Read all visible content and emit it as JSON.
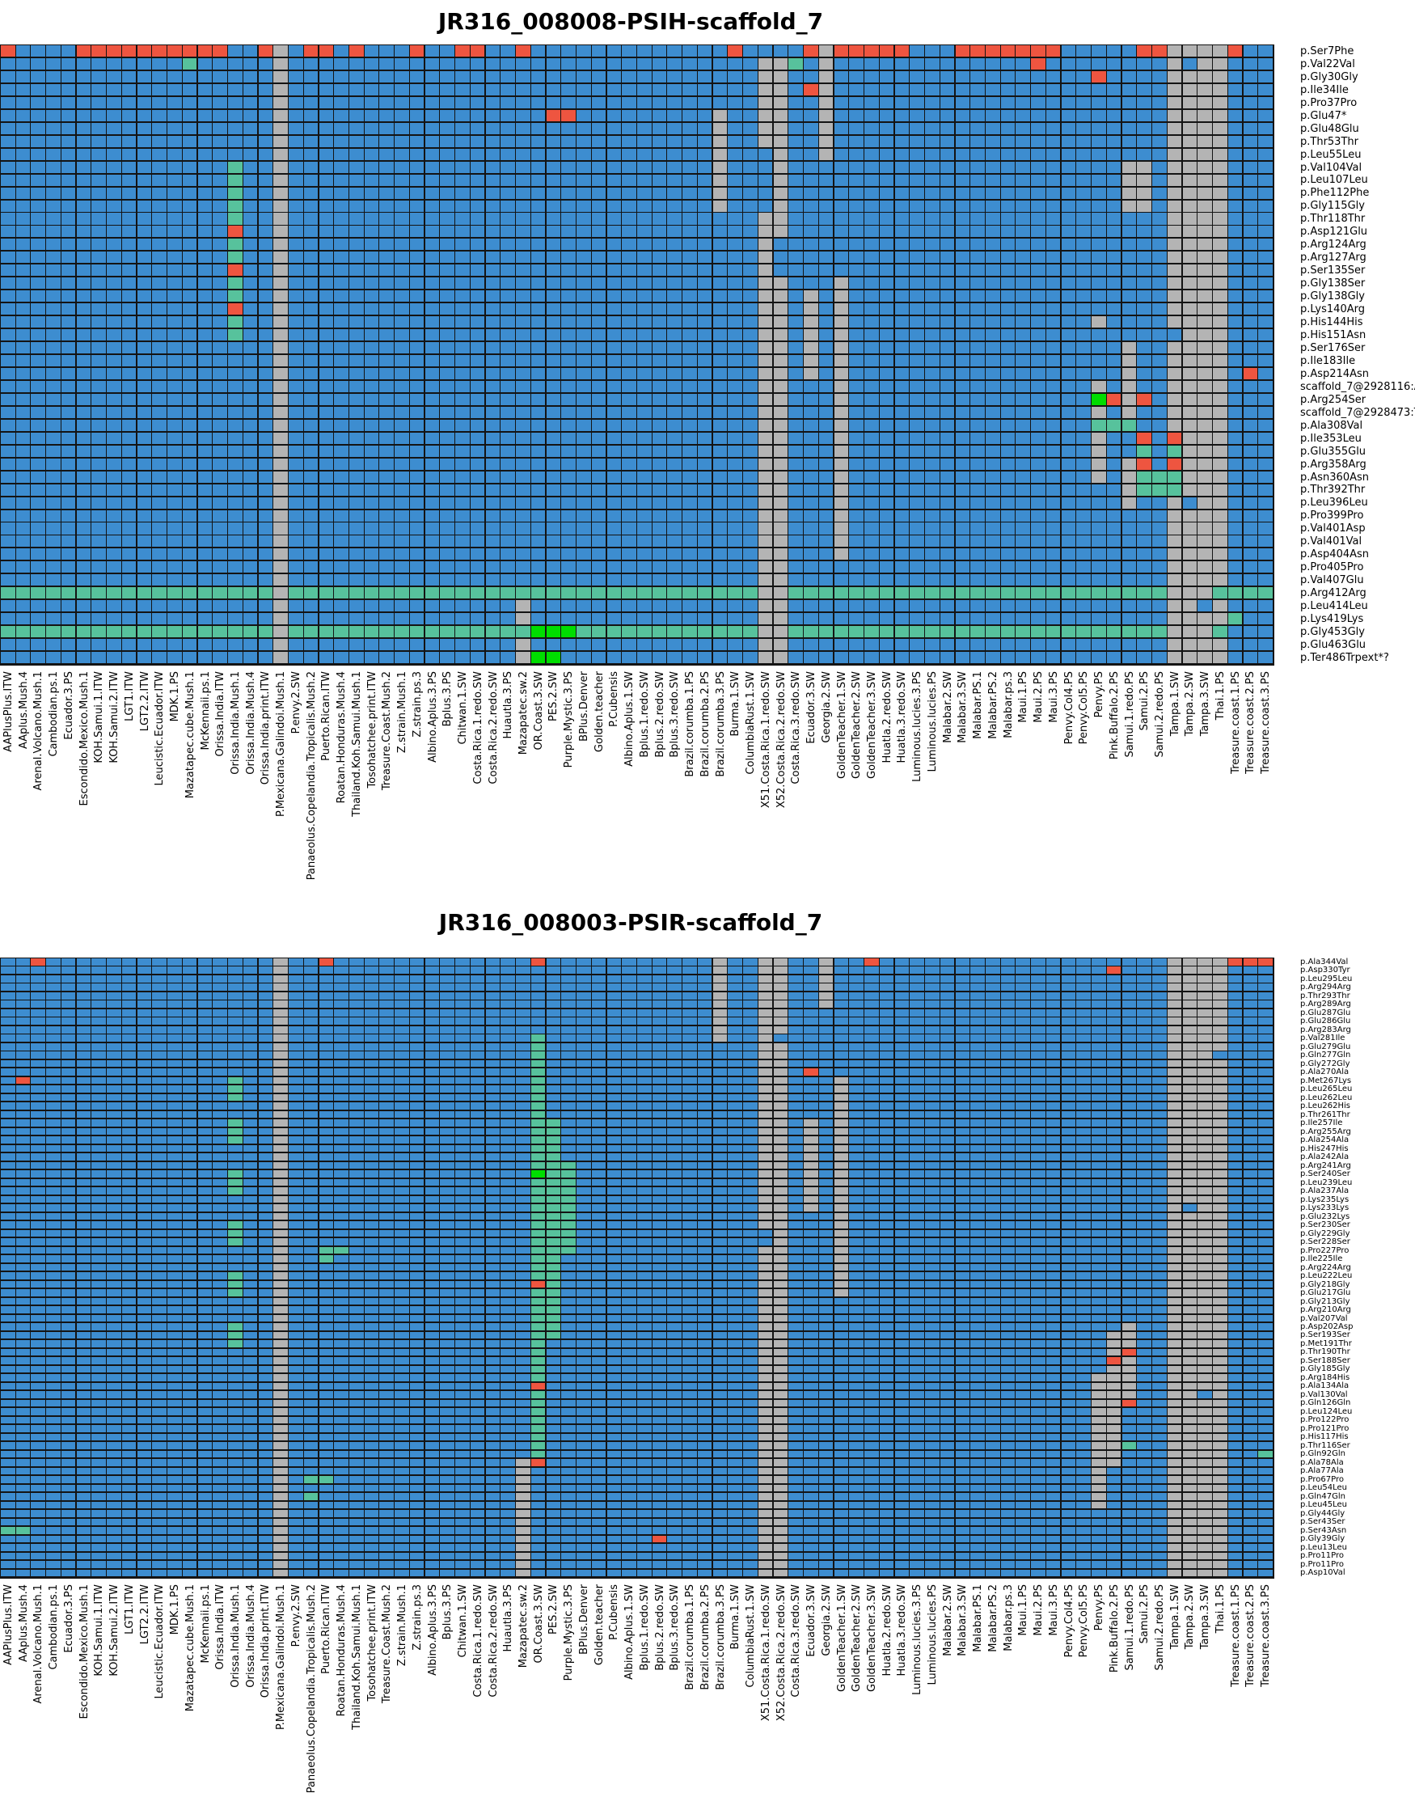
{
  "palette": {
    "blue": "#3d8dd0",
    "red": "#ee5540",
    "teal": "#57c29c",
    "green": "#00dd00",
    "gray": "#b4b4b4",
    "grid_line": "#141414",
    "background": "#ffffff"
  },
  "chart_data": [
    {
      "type": "heatmap",
      "title": "JR316_008008-PSIH-scaffold_7",
      "legend_note": "cell colors: blue=reference, red=alt variant, teal=heterozygous, green=other alt, gray=no data",
      "row_labels": [
        "p.Ser7Phe",
        "p.Val22Val",
        "p.Gly30Gly",
        "p.Ile34Ile",
        "p.Pro37Pro",
        "p.Glu47*",
        "p.Glu48Glu",
        "p.Thr53Thr",
        "p.Leu55Leu",
        "p.Val104Val",
        "p.Leu107Leu",
        "p.Phe112Phe",
        "p.Gly115Gly",
        "p.Thr118Thr",
        "p.Asp121Glu",
        "p.Arg124Arg",
        "p.Arg127Arg",
        "p.Ser135Ser",
        "p.Gly138Ser",
        "p.Gly138Gly",
        "p.Lys140Arg",
        "p.His144His",
        "p.His151Asn",
        "p.Ser176Ser",
        "p.Ile183Ile",
        "p.Asp214Asn",
        "scaffold_7@2928116:A|G",
        "p.Arg254Ser",
        "scaffold_7@2928473:T|A",
        "p.Ala308Val",
        "p.Ile353Leu",
        "p.Glu355Glu",
        "p.Arg358Arg",
        "p.Asn360Asn",
        "p.Thr392Thr",
        "p.Leu396Leu",
        "p.Pro399Pro",
        "p.Val401Asp",
        "p.Val401Val",
        "p.Asp404Asn",
        "p.Pro405Pro",
        "p.Val407Glu",
        "p.Arg412Arg",
        "p.Leu414Leu",
        "p.Lys419Lys",
        "p.Gly453Gly",
        "p.Glu463Glu",
        "p.Ter486Trpext*?"
      ],
      "col_labels": [
        "AAPlusPlus.ITW",
        "AAplus.Mush.4",
        "Arenal.Volcano.Mush.1",
        "Cambodian.ps.1",
        "Ecuador.3.PS",
        "Escondido.Mexico.Mush.1",
        "KOH.Samui.1.ITW",
        "KOH.Samui.2.ITW",
        "LGT1.ITW",
        "LGT2.2.ITW",
        "Leucistic.Ecuador.ITW",
        "MDK.1.PS",
        "Mazatapec.cube.Mush.1",
        "McKennaii.ps.1",
        "Orissa.India.ITW",
        "Orissa.India.Mush.1",
        "Orissa.India.Mush.4",
        "Orissa.India.print.ITW",
        "P.Mexicana.Galindoi.Mush.1",
        "P.envy.2.SW",
        "Panaeolus.Copelandia.Tropicalis.Mush.2",
        "Puerto.Rican.ITW",
        "Roatan.Honduras.Mush.4",
        "Thailand.Koh.Samui.Mush.1",
        "Tosohatchee.print.ITW",
        "Treasure.Coast.Mush.2",
        "Z.strain.Mush.1",
        "Z.strain.ps.3",
        "Albino.Aplus.3.PS",
        "Bplus.3.PS",
        "Chitwan.1.SW",
        "Costa.Rica.1.redo.SW",
        "Costa.Rica.2.redo.SW",
        "Huautla.3.PS",
        "Mazapatec.sw.2",
        "OR.Coast.3.SW",
        "PES.2.SW",
        "Purple.Mystic.3.PS",
        "BPlus.Denver",
        "Golden.teacher",
        "P.Cubensis",
        "Albino.Aplus.1.SW",
        "Bplus.1.redo.SW",
        "Bplus.2.redo.SW",
        "Bplus.3.redo.SW",
        "Brazil.corumba.1.PS",
        "Brazil.corumba.2.PS",
        "Brazil.corumba.3.PS",
        "Burma.1.SW",
        "ColumbiaRust.1.SW",
        "X51.Costa.Rica.1.redo.SW",
        "X52.Costa.Rica.2.redo.SW",
        "Costa.Rica.3.redo.SW",
        "Ecuador.3.SW",
        "Georgia.2.SW",
        "GoldenTeacher.1.SW",
        "GoldenTeacher.2.SW",
        "GoldenTeacher.3.SW",
        "Huatla.2.redo.SW",
        "Huatla.3.redo.SW",
        "Luminous.lucies.3.PS",
        "Luminous.lucies.PS",
        "Malabar.2.SW",
        "Malabar.3.SW",
        "Malabar.PS.1",
        "Malabar.PS.2",
        "Malabar.ps.3",
        "Maui.1.PS",
        "Maui.2.PS",
        "Maui.3.PS",
        "Penvy.Col4.PS",
        "Penvy.Col5.PS",
        "Penvy.PS",
        "Pink.Buffalo.2.PS",
        "Samui.1.redo.PS",
        "Samui.2.PS",
        "Samui.2.redo.PS",
        "Tampa.1.SW",
        "Tampa.2.SW",
        "Tampa.3.SW",
        "Thai.1.PS",
        "Treasure.coast.1.PS",
        "Treasure.coast.2.PS",
        "Treasure.coast.3.PS"
      ],
      "default_color": "blue",
      "gray_col_runs": [
        [
          19,
          1,
          48
        ],
        [
          51,
          2,
          8
        ],
        [
          51,
          14,
          48
        ],
        [
          52,
          2,
          15
        ],
        [
          52,
          19,
          48
        ],
        [
          48,
          6,
          13
        ],
        [
          55,
          1,
          9
        ],
        [
          56,
          19,
          40
        ],
        [
          54,
          20,
          26
        ],
        [
          73,
          22,
          22
        ],
        [
          73,
          27,
          29
        ],
        [
          73,
          31,
          34
        ],
        [
          75,
          10,
          13
        ],
        [
          76,
          10,
          13
        ],
        [
          75,
          24,
          29
        ],
        [
          75,
          33,
          36
        ],
        [
          35,
          44,
          48
        ],
        [
          78,
          1,
          48
        ],
        [
          79,
          1,
          48
        ],
        [
          80,
          1,
          48
        ],
        [
          81,
          1,
          48
        ]
      ],
      "teal_col_runs": [
        [
          16,
          10,
          14
        ],
        [
          16,
          16,
          17
        ],
        [
          16,
          19,
          20
        ],
        [
          16,
          22,
          23
        ]
      ],
      "teal_row_runs": [
        [
          43,
          1,
          18
        ],
        [
          43,
          20,
          50
        ],
        [
          43,
          53,
          77
        ],
        [
          43,
          81,
          84
        ],
        [
          46,
          1,
          18
        ],
        [
          46,
          20,
          35
        ],
        [
          46,
          39,
          50
        ],
        [
          46,
          53,
          77
        ],
        [
          46,
          81,
          81
        ]
      ],
      "blue_cells": [
        [
          23,
          78
        ],
        [
          36,
          79
        ],
        [
          44,
          80
        ],
        [
          2,
          79
        ]
      ],
      "teal_cells": [
        [
          2,
          13
        ],
        [
          2,
          53
        ],
        [
          30,
          73
        ],
        [
          30,
          74
        ],
        [
          30,
          75
        ],
        [
          32,
          76
        ],
        [
          32,
          78
        ],
        [
          34,
          76
        ],
        [
          34,
          77
        ],
        [
          34,
          78
        ],
        [
          35,
          76
        ],
        [
          35,
          77
        ],
        [
          35,
          78
        ],
        [
          45,
          82
        ]
      ],
      "red_cells": [
        [
          1,
          1
        ],
        [
          1,
          6
        ],
        [
          1,
          7
        ],
        [
          1,
          8
        ],
        [
          1,
          9
        ],
        [
          1,
          10
        ],
        [
          1,
          11
        ],
        [
          1,
          12
        ],
        [
          1,
          13
        ],
        [
          1,
          14
        ],
        [
          1,
          15
        ],
        [
          1,
          18
        ],
        [
          1,
          21
        ],
        [
          1,
          22
        ],
        [
          1,
          24
        ],
        [
          1,
          28
        ],
        [
          1,
          31
        ],
        [
          1,
          32
        ],
        [
          1,
          35
        ],
        [
          1,
          49
        ],
        [
          1,
          54
        ],
        [
          1,
          56
        ],
        [
          1,
          57
        ],
        [
          1,
          58
        ],
        [
          1,
          59
        ],
        [
          1,
          60
        ],
        [
          1,
          64
        ],
        [
          1,
          65
        ],
        [
          1,
          66
        ],
        [
          1,
          67
        ],
        [
          1,
          68
        ],
        [
          1,
          69
        ],
        [
          1,
          70
        ],
        [
          1,
          76
        ],
        [
          1,
          77
        ],
        [
          1,
          82
        ],
        [
          2,
          69
        ],
        [
          3,
          73
        ],
        [
          4,
          54
        ],
        [
          6,
          37
        ],
        [
          6,
          38
        ],
        [
          15,
          16
        ],
        [
          18,
          16
        ],
        [
          21,
          16
        ],
        [
          26,
          83
        ],
        [
          28,
          74
        ],
        [
          28,
          76
        ],
        [
          31,
          76
        ],
        [
          31,
          78
        ],
        [
          33,
          76
        ],
        [
          33,
          78
        ]
      ],
      "green_cells": [
        [
          28,
          73
        ],
        [
          46,
          36
        ],
        [
          46,
          37
        ],
        [
          46,
          38
        ],
        [
          48,
          36
        ],
        [
          48,
          37
        ]
      ]
    },
    {
      "type": "heatmap",
      "title": "JR316_008003-PSIR-scaffold_7",
      "legend_note": "cell colors: blue=reference, red=alt variant, teal=heterozygous, green=other alt, gray=no data",
      "row_labels": [
        "p.Ala344Val",
        "p.Asp330Tyr",
        "p.Leu295Leu",
        "p.Arg294Arg",
        "p.Thr293Thr",
        "p.Arg289Arg",
        "p.Glu287Glu",
        "p.Glu286Glu",
        "p.Arg283Arg",
        "p.Val281Ile",
        "p.Glu279Glu",
        "p.Gln277Gln",
        "p.Gly272Gly",
        "p.Ala270Ala",
        "p.Met267Lys",
        "p.Leu265Leu",
        "p.Leu262Leu",
        "p.Leu262His",
        "p.Thr261Thr",
        "p.Ile257Ile",
        "p.Arg255Arg",
        "p.Ala254Ala",
        "p.His247His",
        "p.Ala242Ala",
        "p.Arg241Arg",
        "p.Ser240Ser",
        "p.Leu239Leu",
        "p.Ala237Ala",
        "p.Lys235Lys",
        "p.Lys233Lys",
        "p.Glu232Lys",
        "p.Ser230Ser",
        "p.Gly229Gly",
        "p.Ser228Ser",
        "p.Pro227Pro",
        "p.Ile225Ile",
        "p.Arg224Arg",
        "p.Leu222Leu",
        "p.Gly218Gly",
        "p.Glu217Glu",
        "p.Gly213Gly",
        "p.Arg210Arg",
        "p.Val207Val",
        "p.Asp202Asp",
        "p.Ser193Ser",
        "p.Met191Thr",
        "p.Thr190Thr",
        "p.Ser188Ser",
        "p.Gly185Gly",
        "p.Arg184His",
        "p.Ala134Ala",
        "p.Val130Val",
        "p.Gln126Gln",
        "p.Leu124Leu",
        "p.Pro122Pro",
        "p.Pro121Pro",
        "p.His117His",
        "p.Thr116Ser",
        "p.Gln92Gln",
        "p.Ala78Ala",
        "p.Ala77Ala",
        "p.Pro67Pro",
        "p.Leu54Leu",
        "p.Gln47Gln",
        "p.Leu45Leu",
        "p.Gly44Gly",
        "p.Ser43Ser",
        "p.Ser43Asn",
        "p.Gly39Gly",
        "p.Leu13Leu",
        "p.Pro11Pro",
        "p.Pro11Pro",
        "p.Asp10Val"
      ],
      "col_labels": [
        "AAPlusPlus.ITW",
        "AAplus.Mush.4",
        "Arenal.Volcano.Mush.1",
        "Cambodian.ps.1",
        "Ecuador.3.PS",
        "Escondido.Mexico.Mush.1",
        "KOH.Samui.1.ITW",
        "KOH.Samui.2.ITW",
        "LGT1.ITW",
        "LGT2.2.ITW",
        "Leucistic.Ecuador.ITW",
        "MDK.1.PS",
        "Mazatapec.cube.Mush.1",
        "McKennaii.ps.1",
        "Orissa.India.ITW",
        "Orissa.India.Mush.1",
        "Orissa.India.Mush.4",
        "Orissa.India.print.ITW",
        "P.Mexicana.Galindoi.Mush.1",
        "P.envy.2.SW",
        "Panaeolus.Copelandia.Tropicalis.Mush.2",
        "Puerto.Rican.ITW",
        "Roatan.Honduras.Mush.4",
        "Thailand.Koh.Samui.Mush.1",
        "Tosohatchee.print.ITW",
        "Treasure.Coast.Mush.2",
        "Z.strain.Mush.1",
        "Z.strain.ps.3",
        "Albino.Aplus.3.PS",
        "Bplus.3.PS",
        "Chitwan.1.SW",
        "Costa.Rica.1.redo.SW",
        "Costa.Rica.2.redo.SW",
        "Huautla.3.PS",
        "Mazapatec.sw.2",
        "OR.Coast.3.SW",
        "PES.2.SW",
        "Purple.Mystic.3.PS",
        "BPlus.Denver",
        "Golden.teacher",
        "P.Cubensis",
        "Albino.Aplus.1.SW",
        "Bplus.1.redo.SW",
        "Bplus.2.redo.SW",
        "Bplus.3.redo.SW",
        "Brazil.corumba.1.PS",
        "Brazil.corumba.2.PS",
        "Brazil.corumba.3.PS",
        "Burma.1.SW",
        "ColumbiaRust.1.SW",
        "X51.Costa.Rica.1.redo.SW",
        "X52.Costa.Rica.2.redo.SW",
        "Costa.Rica.3.redo.SW",
        "Ecuador.3.SW",
        "Georgia.2.SW",
        "GoldenTeacher.1.SW",
        "GoldenTeacher.2.SW",
        "GoldenTeacher.3.SW",
        "Huatla.2.redo.SW",
        "Huatla.3.redo.SW",
        "Luminous.lucies.3.PS",
        "Luminous.lucies.PS",
        "Malabar.2.SW",
        "Malabar.3.SW",
        "Malabar.PS.1",
        "Malabar.PS.2",
        "Malabar.ps.3",
        "Maui.1.PS",
        "Maui.2.PS",
        "Maui.3.PS",
        "Penvy.Col4.PS",
        "Penvy.Col5.PS",
        "Penvy.PS",
        "Pink.Buffalo.2.PS",
        "Samui.1.redo.PS",
        "Samui.2.PS",
        "Samui.2.redo.PS",
        "Tampa.1.SW",
        "Tampa.2.SW",
        "Tampa.3.SW",
        "Thai.1.PS",
        "Treasure.coast.1.PS",
        "Treasure.coast.2.PS",
        "Treasure.coast.3.PS"
      ],
      "default_color": "blue",
      "gray_col_runs": [
        [
          19,
          1,
          73
        ],
        [
          51,
          1,
          73
        ],
        [
          52,
          1,
          73
        ],
        [
          78,
          1,
          73
        ],
        [
          79,
          1,
          73
        ],
        [
          80,
          1,
          73
        ],
        [
          81,
          1,
          73
        ],
        [
          48,
          1,
          10
        ],
        [
          55,
          1,
          6
        ],
        [
          56,
          15,
          40
        ],
        [
          54,
          20,
          30
        ],
        [
          35,
          60,
          73
        ],
        [
          74,
          45,
          60
        ],
        [
          73,
          50,
          65
        ],
        [
          75,
          44,
          52
        ]
      ],
      "teal_col_runs": [
        [
          36,
          10,
          38
        ],
        [
          36,
          40,
          50
        ],
        [
          36,
          52,
          59
        ],
        [
          37,
          20,
          45
        ],
        [
          38,
          25,
          35
        ],
        [
          16,
          15,
          17
        ],
        [
          16,
          20,
          22
        ],
        [
          16,
          26,
          28
        ],
        [
          16,
          32,
          34
        ],
        [
          16,
          38,
          40
        ],
        [
          16,
          44,
          46
        ]
      ],
      "teal_row_runs": [],
      "blue_cells": [
        [
          30,
          79
        ],
        [
          52,
          80
        ],
        [
          12,
          81
        ],
        [
          33,
          51
        ],
        [
          34,
          51
        ],
        [
          10,
          52
        ]
      ],
      "teal_cells": [
        [
          35,
          22
        ],
        [
          35,
          23
        ],
        [
          36,
          22
        ],
        [
          62,
          21
        ],
        [
          62,
          22
        ],
        [
          64,
          21
        ],
        [
          68,
          1
        ],
        [
          68,
          2
        ],
        [
          59,
          84
        ],
        [
          58,
          75
        ]
      ],
      "red_cells": [
        [
          1,
          3
        ],
        [
          1,
          22
        ],
        [
          1,
          36
        ],
        [
          1,
          58
        ],
        [
          1,
          82
        ],
        [
          1,
          83
        ],
        [
          1,
          84
        ],
        [
          2,
          74
        ],
        [
          14,
          54
        ],
        [
          15,
          2
        ],
        [
          39,
          36
        ],
        [
          51,
          36
        ],
        [
          60,
          36
        ],
        [
          47,
          75
        ],
        [
          53,
          75
        ],
        [
          48,
          74
        ],
        [
          69,
          44
        ]
      ],
      "green_cells": [
        [
          26,
          36
        ]
      ]
    }
  ]
}
